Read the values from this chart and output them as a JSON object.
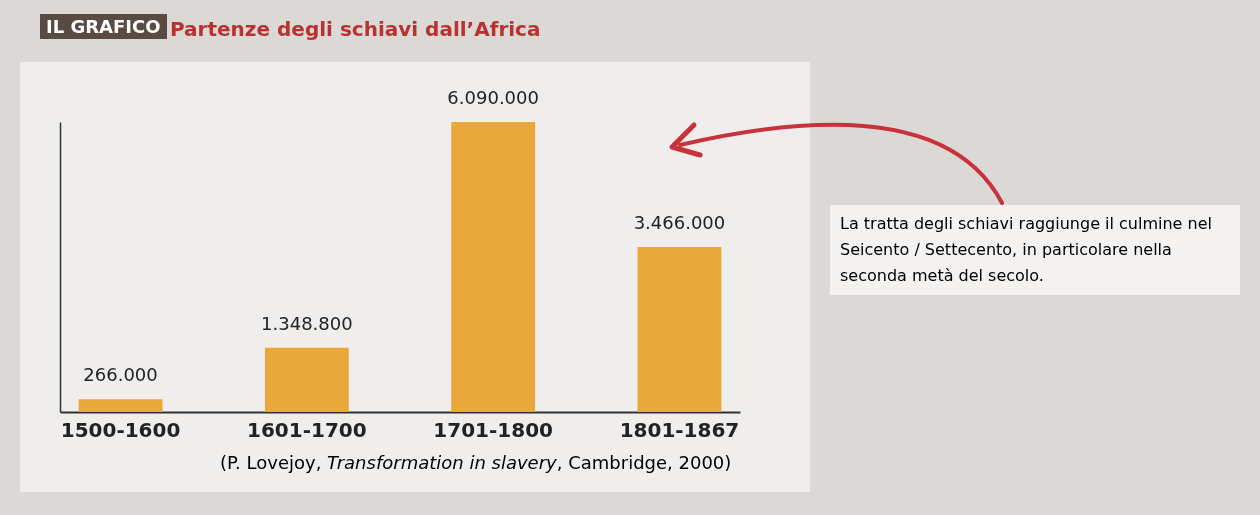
{
  "chart_data": {
    "type": "bar",
    "title": "Partenze degli schiavi dall’Africa",
    "categories": [
      "1500-1600",
      "1601-1700",
      "1701-1800",
      "1801-1867"
    ],
    "values": [
      266000,
      1348800,
      6090000,
      3466000
    ],
    "value_labels": [
      "266.000",
      "1.348.800",
      "6.090.000",
      "3.466.000"
    ],
    "color": "#e8a93a",
    "tick_labels": "x",
    "annotations": [
      "IL GRAFICO",
      "La tratta degli schiavi raggiunge il culmine nel Seicento / Settecento, in particolare nella seconda metà del secolo.",
      "(P. Lovejoy, Transformation in slavery, Cambridge, 2000)"
    ]
  }
}
